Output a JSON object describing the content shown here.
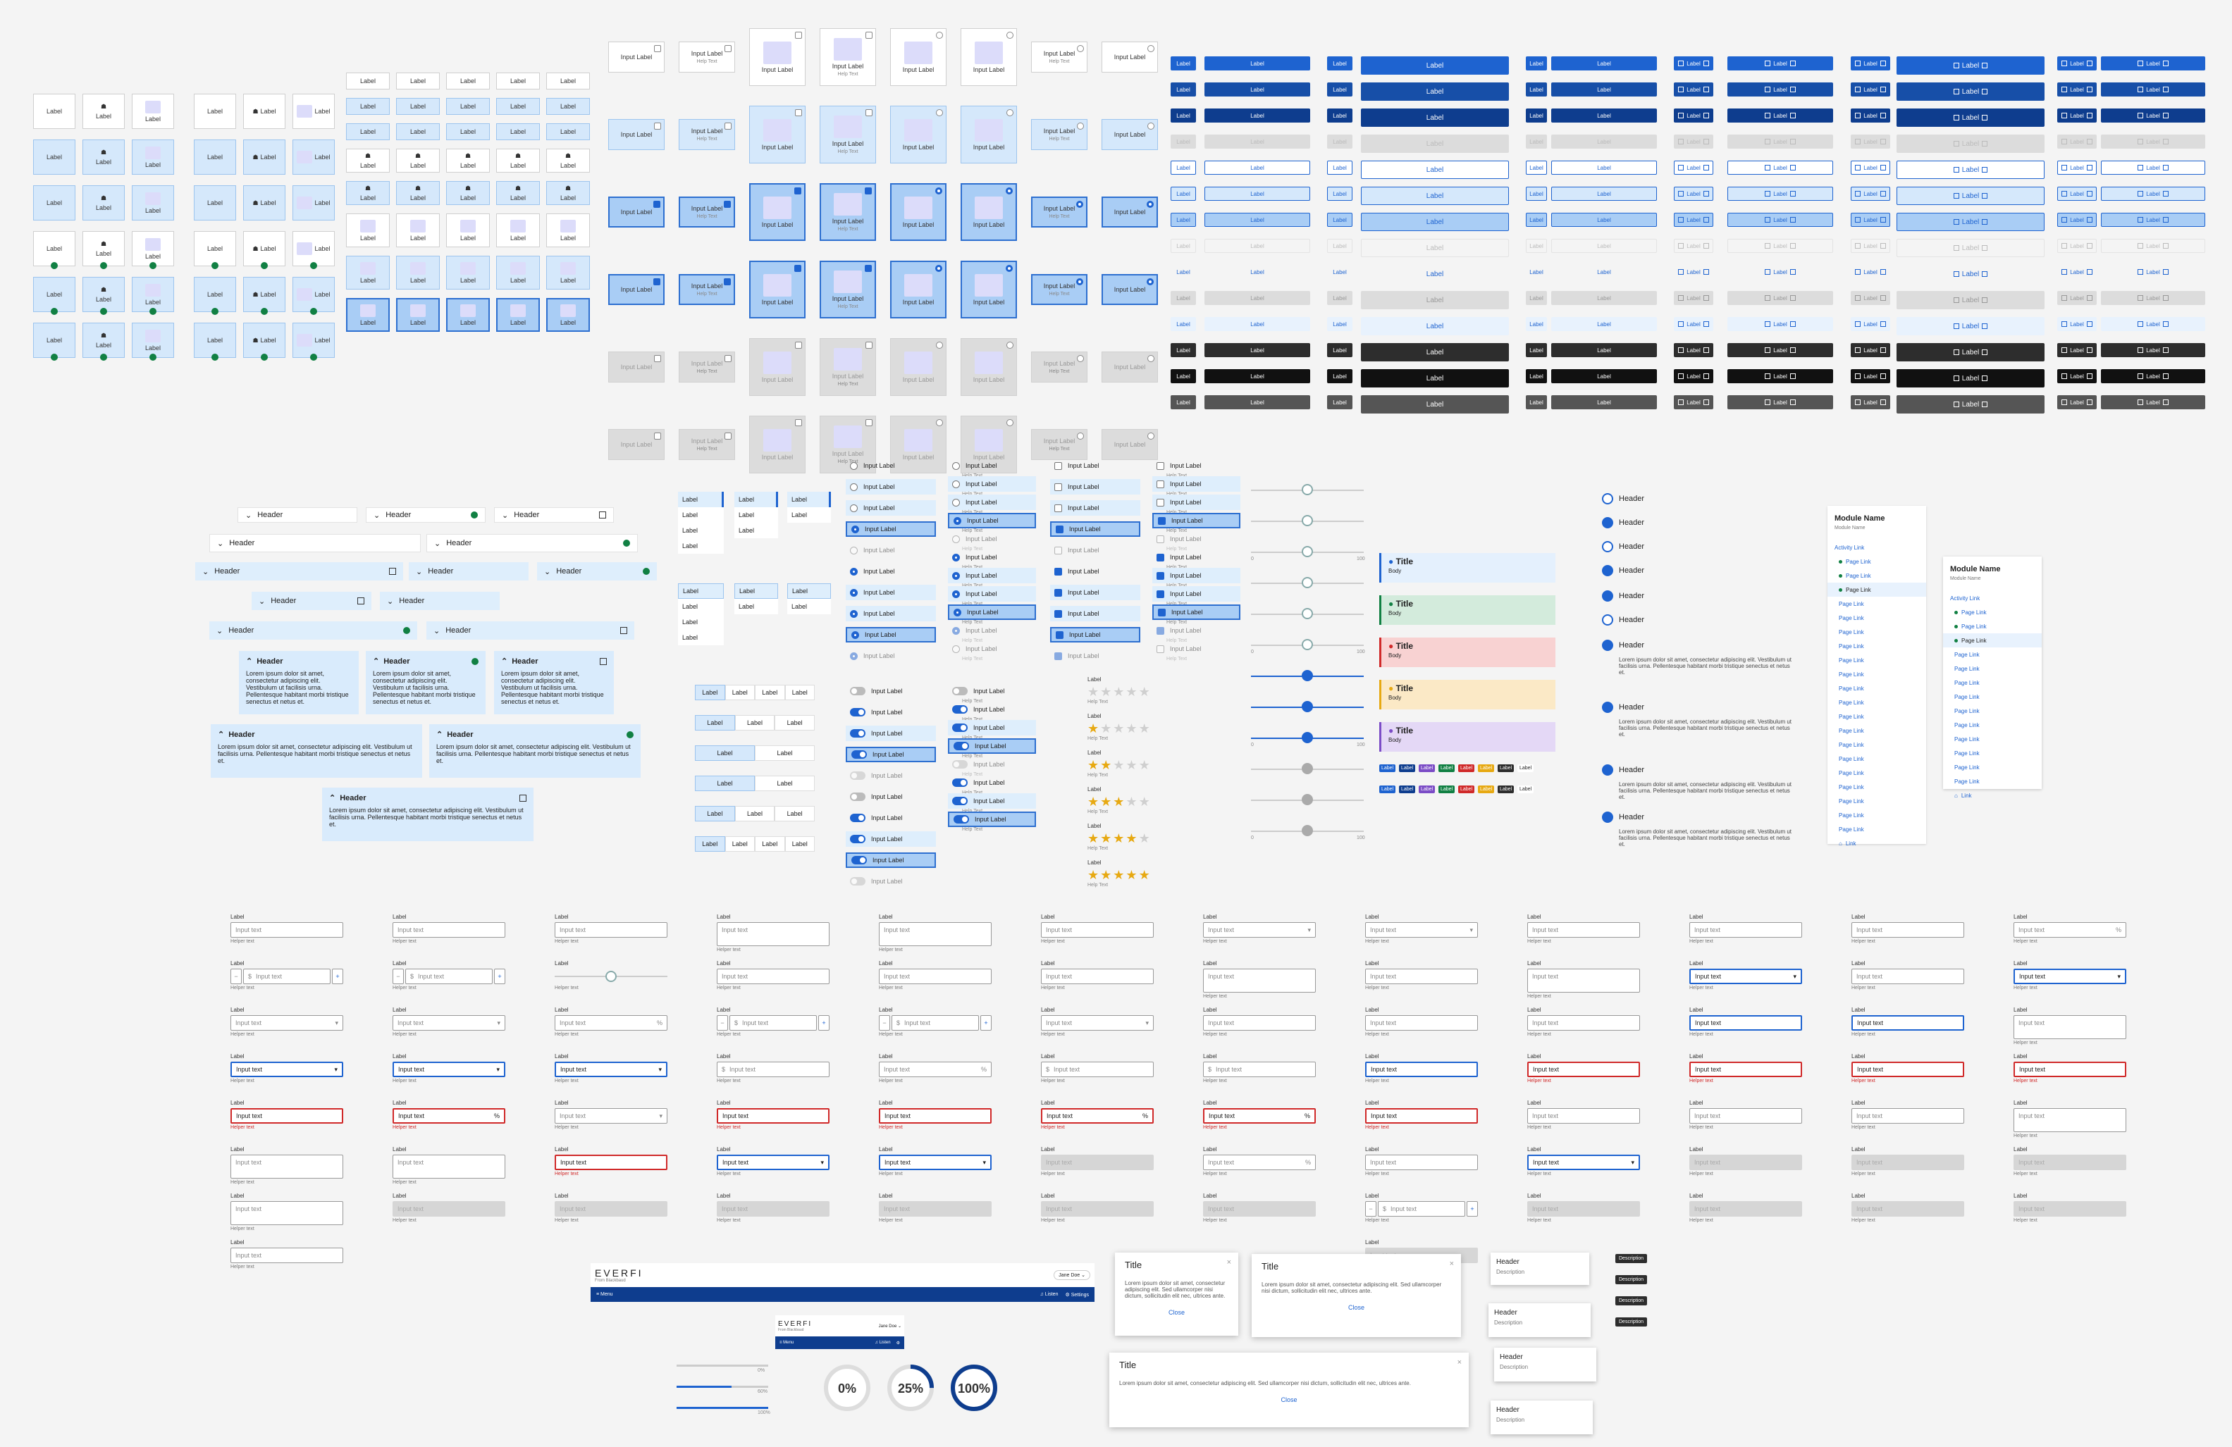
{
  "text": {
    "label": "Label",
    "input_label": "Input Label",
    "help_text": "Help Text",
    "header": "Header",
    "title": "Title",
    "body": "Body",
    "description": "Description",
    "close": "Close",
    "lorem_short": "Lorem ipsum dolor sit amet, consectetur adipiscing elit. Vestibulum ut facilisis urna. Pellentesque habitant morbi tristique senectus et netus et.",
    "lorem_modal": "Lorem ipsum dolor sit amet, consectetur adipiscing elit. Sed ullamcorper nisi dictum, sollicitudin elit nec, ultrices ante.",
    "input_text": "Input text",
    "helper_text": "Helper text",
    "helper_error": "Helper text",
    "currency": "$",
    "percent": "%",
    "minus": "−",
    "plus": "+"
  },
  "side_nav": {
    "module_name": "Module Name",
    "module_sub": "Module Name",
    "activity_link": "Activity Link",
    "page_link": "Page Link",
    "footer": "Link"
  },
  "header_bar": {
    "logo": "EVERFI",
    "subtitle": "From Blackbaud",
    "user": "Jane Doe",
    "menu": "Menu",
    "listen": "Listen",
    "settings": "Settings"
  },
  "progress": {
    "bars": [
      {
        "label": "0%",
        "value": 0
      },
      {
        "label": "60%",
        "value": 0.6
      },
      {
        "label": "100%",
        "value": 1
      }
    ],
    "circles": [
      {
        "label": "0%",
        "value": 0
      },
      {
        "label": "25%",
        "value": 0.25
      },
      {
        "label": "100%",
        "value": 1
      }
    ]
  },
  "ratings": [
    0,
    1,
    2,
    3,
    4,
    5
  ],
  "slider_scale": {
    "min": "0",
    "max": "100"
  },
  "colors": {
    "primary": "#1e63d0",
    "primary_dark": "#0e3d8e",
    "selected": "#d5e8fb",
    "success": "#118043",
    "error": "#d02929",
    "warning": "#e7a912",
    "dark": "#2d2d2d",
    "disabled": "#dcdcdc"
  },
  "alerts": [
    {
      "variant": "info",
      "icon": "info-icon"
    },
    {
      "variant": "success",
      "icon": "check-circle-icon"
    },
    {
      "variant": "error",
      "icon": "error-icon"
    },
    {
      "variant": "warning",
      "icon": "warning-icon"
    },
    {
      "variant": "neutral",
      "icon": "info-icon"
    }
  ]
}
